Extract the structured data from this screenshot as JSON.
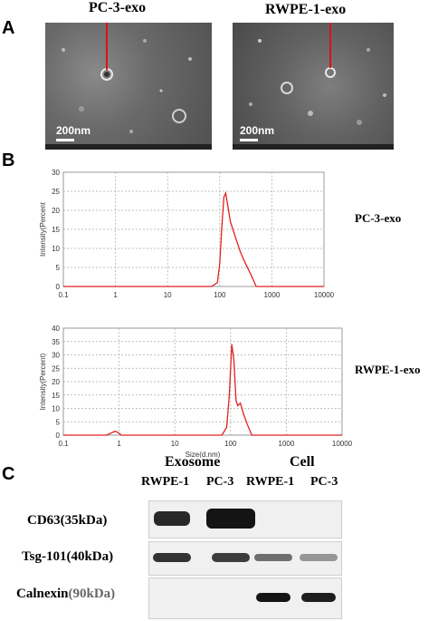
{
  "panels": {
    "a": "A",
    "b": "B",
    "c": "C"
  },
  "tem": [
    {
      "title": "PC-3-exo",
      "scale": "200nm"
    },
    {
      "title": "RWPE-1-exo",
      "scale": "200nm"
    }
  ],
  "chart_data": [
    {
      "type": "line",
      "xscale": "log",
      "xlim": [
        0.1,
        10000
      ],
      "ylim": [
        0,
        30
      ],
      "xticks": [
        "0.1",
        "1",
        "10",
        "100",
        "1000",
        "10000"
      ],
      "yticks": [
        "0",
        "5",
        "10",
        "15",
        "20",
        "25",
        "30"
      ],
      "ylabel": "Intensity(Percent",
      "xlabel": "",
      "grid": true,
      "side_label": "PC-3-exo",
      "series": [
        {
          "color": "#e02020",
          "x": [
            0.1,
            70,
            90,
            100,
            110,
            120,
            130,
            140,
            160,
            200,
            250,
            300,
            400,
            500,
            10000
          ],
          "y": [
            0,
            0,
            1,
            6,
            16,
            23.5,
            24.5,
            22,
            17,
            13,
            9,
            6.5,
            3,
            0,
            0
          ]
        }
      ]
    },
    {
      "type": "line",
      "xscale": "log",
      "xlim": [
        0.1,
        10000
      ],
      "ylim": [
        0,
        40
      ],
      "xticks": [
        "0.1",
        "1",
        "10",
        "100",
        "1000",
        "10000"
      ],
      "yticks": [
        "0",
        "5",
        "10",
        "15",
        "20",
        "25",
        "30",
        "35",
        "40"
      ],
      "ylabel": "Intensity(Percent)",
      "xlabel": "Size(d.nm)",
      "grid": true,
      "side_label": "RWPE-1-exo",
      "series": [
        {
          "color": "#e02020",
          "x": [
            0.1,
            0.6,
            0.75,
            0.85,
            0.95,
            1.1,
            70,
            85,
            95,
            105,
            115,
            125,
            135,
            150,
            170,
            200,
            240,
            10000
          ],
          "y": [
            0,
            0,
            1,
            1.5,
            1,
            0,
            0,
            3,
            15,
            34,
            28,
            13,
            11,
            12,
            8,
            4,
            0,
            0
          ]
        }
      ]
    }
  ],
  "western_blot": {
    "group_exosome": "Exosome",
    "group_cell": "Cell",
    "lanes": [
      "RWPE-1",
      "PC-3",
      "RWPE-1",
      "PC-3"
    ],
    "rows": [
      {
        "label": "CD63(35kDa)",
        "intensity": [
          0.9,
          1.0,
          0,
          0
        ]
      },
      {
        "label": "Tsg-101(40kDa)",
        "intensity": [
          0.85,
          0.8,
          0.55,
          0.35
        ]
      },
      {
        "label_main": "Calnexin",
        "label_kda": "(90kDa)",
        "intensity": [
          0,
          0,
          1.0,
          0.95
        ]
      }
    ]
  }
}
